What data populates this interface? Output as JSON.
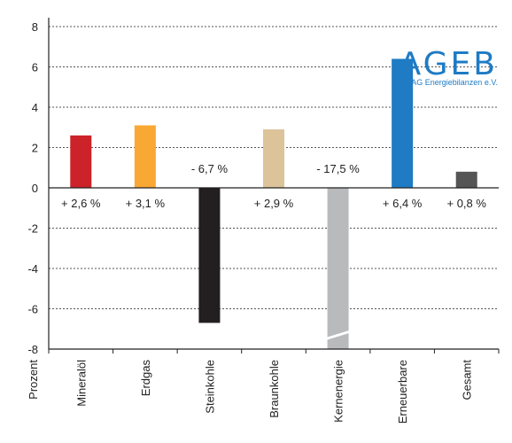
{
  "chart_data": {
    "type": "bar",
    "categories": [
      "Mineralöl",
      "Erdgas",
      "Steinkohle",
      "Braunkohle",
      "Kernenergie",
      "Erneuerbare",
      "Gesamt"
    ],
    "values": [
      2.6,
      3.1,
      -6.7,
      2.9,
      -17.5,
      6.4,
      0.8
    ],
    "data_labels": [
      "+ 2,6 %",
      "+ 3,1 %",
      "- 6,7 %",
      "+ 2,9 %",
      "- 17,5 %",
      "+ 6,4 %",
      "+ 0,8 %"
    ],
    "colors": [
      "#cc2229",
      "#f9a833",
      "#231f20",
      "#dcc39a",
      "#b9babc",
      "#1e7bc4",
      "#555555"
    ],
    "ylabel": "Prozent",
    "ylim": [
      -8,
      8
    ],
    "yticks": [
      8,
      6,
      4,
      2,
      0,
      -2,
      -4,
      -6,
      -8
    ],
    "grid": true,
    "axis_break_on": "Kernenergie"
  },
  "logo": {
    "main": "AGEB",
    "sub": "AG Energiebilanzen e.V.",
    "color": "#1e7bc4"
  }
}
